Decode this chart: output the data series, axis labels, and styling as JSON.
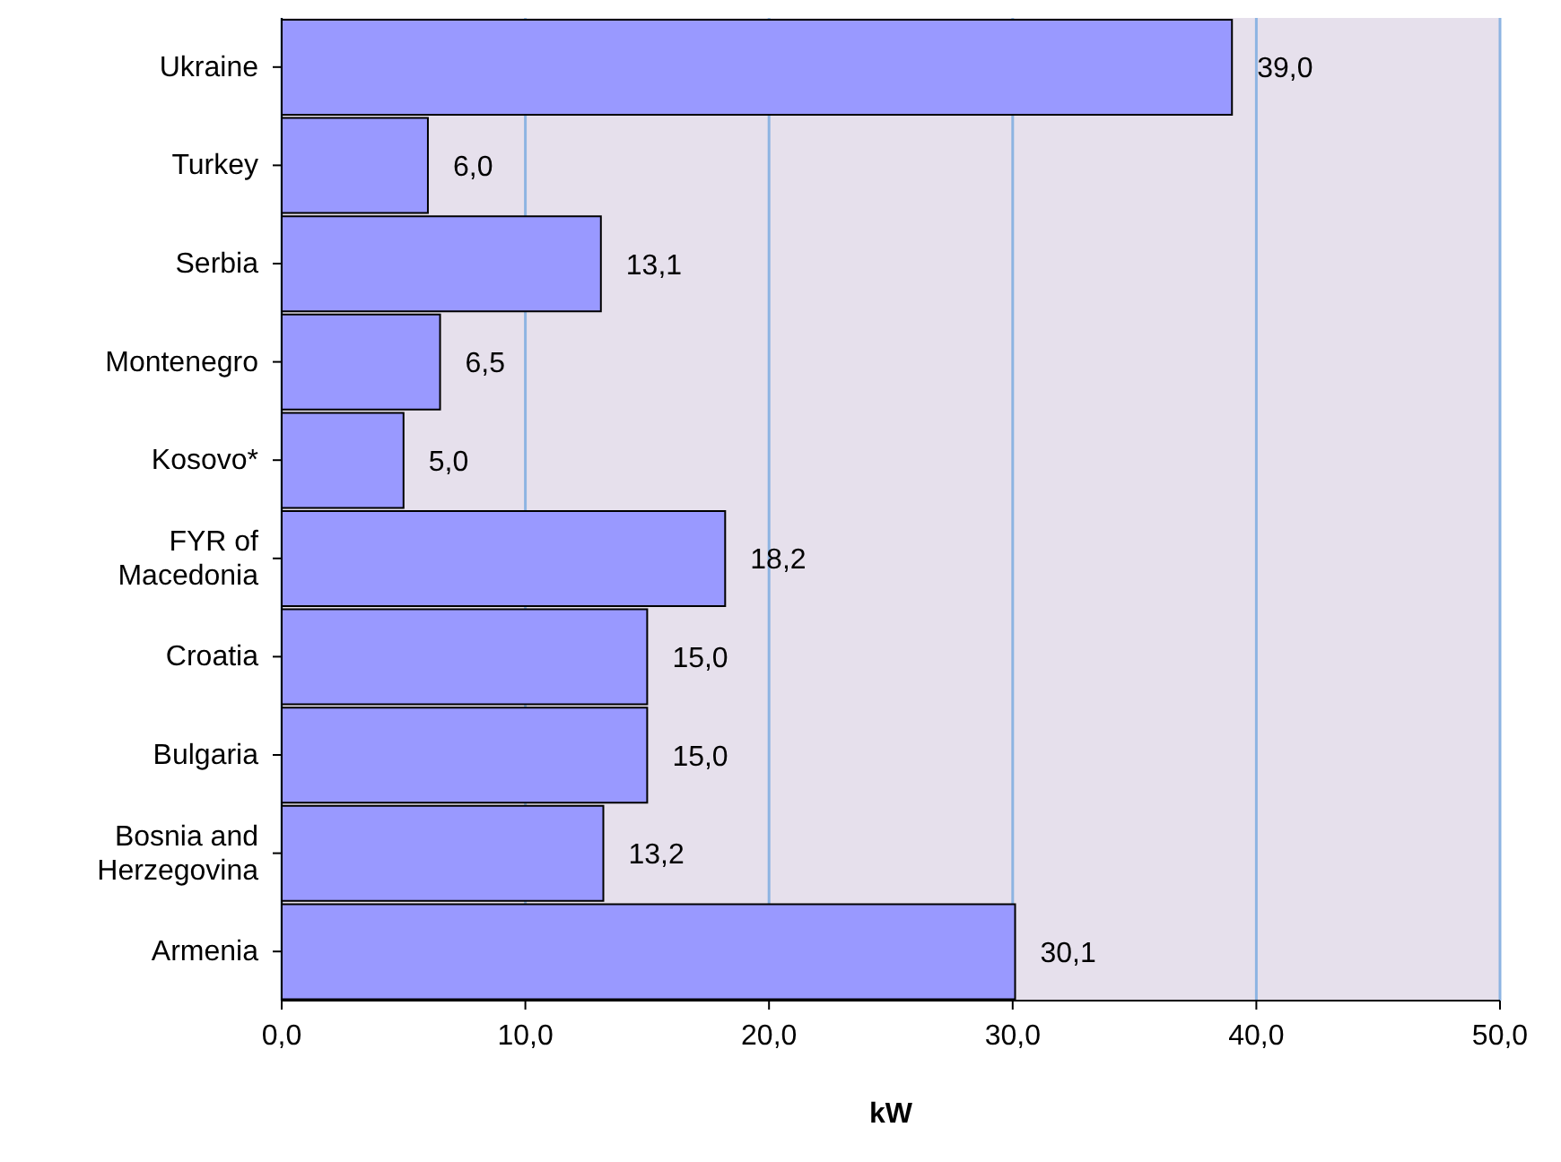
{
  "chart_data": {
    "type": "bar",
    "orientation": "horizontal",
    "xlabel": "kW",
    "categories": [
      "Ukraine",
      "Turkey",
      "Serbia",
      "Montenegro",
      "Kosovo*",
      "FYR of Macedonia",
      "Croatia",
      "Bulgaria",
      "Bosnia and Herzegovina",
      "Armenia"
    ],
    "values": [
      39.0,
      6.0,
      13.1,
      6.5,
      5.0,
      18.2,
      15.0,
      15.0,
      13.2,
      30.1
    ],
    "value_labels": [
      "39,0",
      "6,0",
      "13,1",
      "6,5",
      "5,0",
      "18,2",
      "15,0",
      "15,0",
      "13,2",
      "30,1"
    ],
    "color": "#9999ff",
    "xlim": [
      0,
      50
    ],
    "xticks": [
      {
        "value": 0,
        "label": "0,0"
      },
      {
        "value": 10,
        "label": "10,0"
      },
      {
        "value": 20,
        "label": "20,0"
      },
      {
        "value": 30,
        "label": "30,0"
      },
      {
        "value": 40,
        "label": "40,0"
      },
      {
        "value": 50,
        "label": "50,0"
      }
    ],
    "grid": "x",
    "legend": false
  }
}
